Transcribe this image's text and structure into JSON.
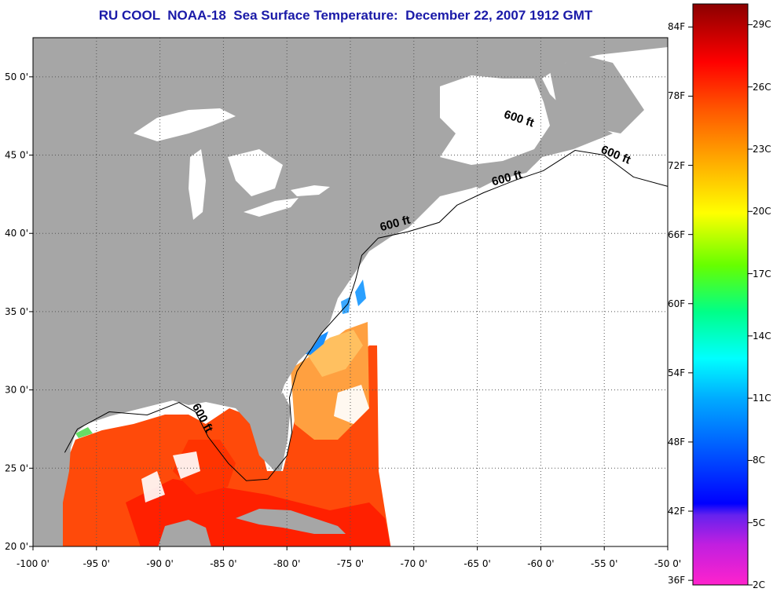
{
  "title": "RU COOL  NOAA-18  Sea Surface Temperature:  December 22, 2007 1912 GMT",
  "map": {
    "lon_range": [
      -100,
      -50
    ],
    "lat_range": [
      20,
      52.5
    ],
    "lat_ticks": [
      "20 0'",
      "25 0'",
      "30 0'",
      "35 0'",
      "40 0'",
      "45 0'",
      "50 0'"
    ],
    "lon_ticks": [
      "-100 0'",
      "-95 0'",
      "-90 0'",
      "-85 0'",
      "-80 0'",
      "-75 0'",
      "-70 0'",
      "-65 0'",
      "-60 0'",
      "-55 0'",
      "-50 0'"
    ],
    "grid": true,
    "contour_label": "600 ft",
    "contour_labels": [
      {
        "text": "600 ft",
        "lon": -61.8,
        "lat": 47.1,
        "angle": 18
      },
      {
        "text": "600 ft",
        "lon": -54.2,
        "lat": 44.8,
        "angle": 22
      },
      {
        "text": "600 ft",
        "lon": -62.6,
        "lat": 43.3,
        "angle": -15
      },
      {
        "text": "600 ft",
        "lon": -71.4,
        "lat": 40.4,
        "angle": -15
      },
      {
        "text": "600 ft",
        "lon": -86.9,
        "lat": 28.1,
        "angle": 62
      }
    ],
    "colors": {
      "land": "#a6a6a6",
      "no_data": "#ffffff",
      "water_warm": "#ff2a00",
      "water_mid": "#ff7a10",
      "water_cool": "#ffb23a",
      "coastal_cold": "#1a8cff"
    }
  },
  "colorbar": {
    "celsius_ticks": [
      "29C",
      "26C",
      "23C",
      "20C",
      "17C",
      "14C",
      "11C",
      "8C",
      "5C",
      "2C"
    ],
    "fahrenheit_ticks": [
      "84F",
      "78F",
      "72F",
      "66F",
      "60F",
      "54F",
      "48F",
      "42F",
      "36F"
    ],
    "celsius_range": [
      2,
      30
    ],
    "colors": [
      "#ff22cc",
      "#8a2be2",
      "#0000ff",
      "#0099ff",
      "#00ffff",
      "#00ff66",
      "#aaff00",
      "#ffff00",
      "#ffaa00",
      "#ff5500",
      "#ff0000",
      "#990000"
    ]
  }
}
